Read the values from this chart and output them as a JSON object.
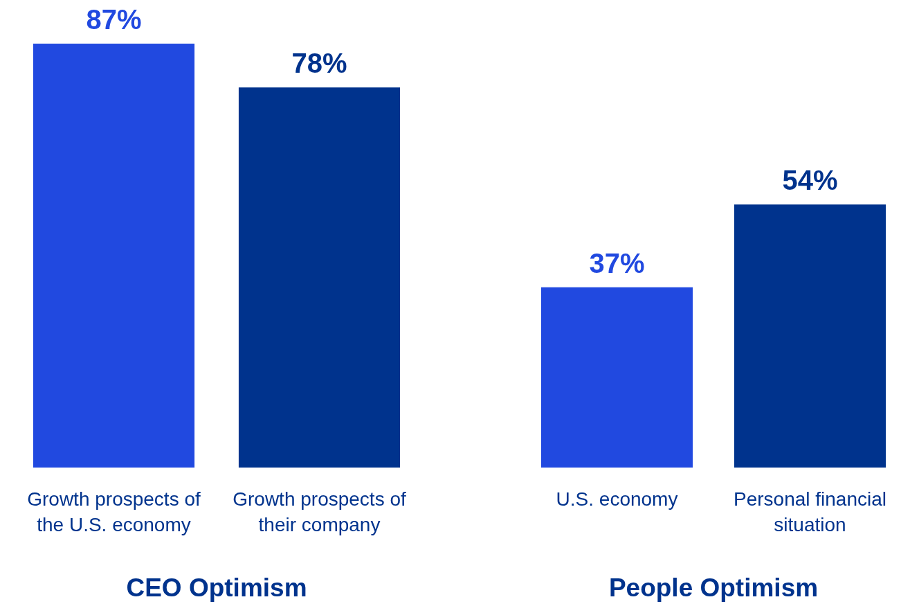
{
  "chart_data": [
    {
      "type": "bar",
      "xlabel": "CEO Optimism",
      "categories": [
        "Growth prospects of the U.S. economy",
        "Growth prospects of their company"
      ],
      "values": [
        87,
        78
      ],
      "colors": [
        "#2149e0",
        "#00338d"
      ],
      "value_labels": [
        "87%",
        "78%"
      ]
    },
    {
      "type": "bar",
      "xlabel": "People Optimism",
      "categories": [
        "U.S. economy",
        "Personal financial situation"
      ],
      "values": [
        37,
        54
      ],
      "colors": [
        "#2149e0",
        "#00338d"
      ],
      "value_labels": [
        "37%",
        "54%"
      ]
    }
  ]
}
